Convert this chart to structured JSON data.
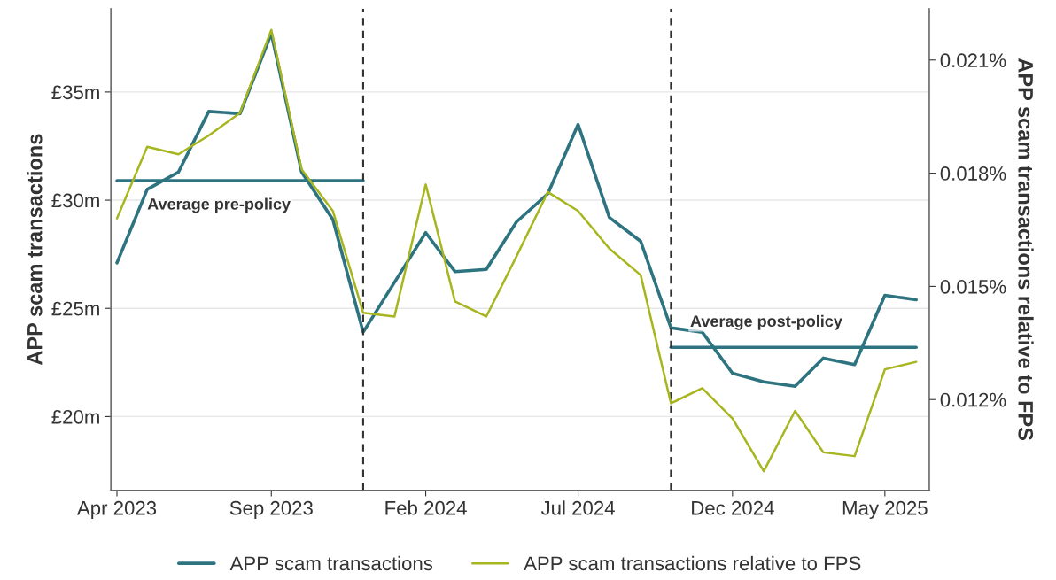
{
  "chart_data": {
    "type": "line",
    "ylabel": "APP scam transactions",
    "y2label": "APP scam transactions relative to FPS",
    "x": [
      "2023-04",
      "2023-05",
      "2023-06",
      "2023-07",
      "2023-08",
      "2023-09",
      "2023-10",
      "2023-11",
      "2023-12",
      "2024-01",
      "2024-02",
      "2024-03",
      "2024-04",
      "2024-05",
      "2024-06",
      "2024-07",
      "2024-08",
      "2024-09",
      "2024-10",
      "2024-11",
      "2024-12",
      "2025-01",
      "2025-02",
      "2025-03",
      "2025-04",
      "2025-05",
      "2025-06"
    ],
    "series": [
      {
        "name": "APP scam transactions",
        "color": "#2e7480",
        "values": [
          27.1,
          30.5,
          31.3,
          34.1,
          34.0,
          37.7,
          31.3,
          29.1,
          23.9,
          26.2,
          28.5,
          26.7,
          26.8,
          29.0,
          30.3,
          33.5,
          29.2,
          28.1,
          24.1,
          23.9,
          22.0,
          21.6,
          21.4,
          22.7,
          22.4,
          25.6,
          25.4
        ]
      },
      {
        "name": "APP scam transactions relative to FPS",
        "color": "#a7b51e",
        "axis": "y2",
        "values": [
          0.0168,
          0.0187,
          0.0185,
          0.019,
          0.0196,
          0.0218,
          0.0181,
          0.017,
          0.0143,
          0.0142,
          0.0177,
          0.0146,
          0.0142,
          0.0158,
          0.0175,
          0.017,
          0.016,
          0.0153,
          0.0119,
          0.0123,
          0.0115,
          0.0101,
          0.0117,
          0.0106,
          0.0105,
          0.0128,
          0.013
        ]
      },
      {
        "type": "line",
        "color": "#2e7480",
        "x": [
          "2023-04",
          "2023-12"
        ],
        "values": [
          30.9,
          30.9
        ]
      },
      {
        "type": "line",
        "color": "#2e7480",
        "x": [
          "2024-10",
          "2025-06"
        ],
        "values": [
          23.2,
          23.2
        ]
      }
    ],
    "annotations": [
      {
        "text": "Average pre-policy",
        "x": "2023-05-01",
        "y": 30.9
      },
      {
        "text": "Average post-policy",
        "x": "2024-10-20",
        "y": 23.2
      }
    ],
    "ref_lines": [
      {
        "axis": "x",
        "value": "2023-12",
        "color": "#333333",
        "line_style": "dashed"
      },
      {
        "axis": "x",
        "value": "2024-10",
        "color": "#333333",
        "line_style": "dashed"
      }
    ],
    "xlim": [
      "2023-03-26",
      "2025-06-14"
    ],
    "xticks": [
      {
        "value": "2023-04",
        "label": "Apr 2023"
      },
      {
        "value": "2023-09",
        "label": "Sep 2023"
      },
      {
        "value": "2024-02",
        "label": "Feb 2024"
      },
      {
        "value": "2024-07",
        "label": "Jul 2024"
      },
      {
        "value": "2024-12",
        "label": "Dec 2024"
      },
      {
        "value": "2025-05",
        "label": "May 2025"
      }
    ],
    "ylim": [
      16.6,
      38.85
    ],
    "yticks": [
      {
        "value": 20,
        "label": "£20m"
      },
      {
        "value": 25,
        "label": "£25m"
      },
      {
        "value": 30,
        "label": "£30m"
      },
      {
        "value": 35,
        "label": "£35m"
      }
    ],
    "y2lim": [
      0.0096,
      0.02236
    ],
    "y2ticks": [
      {
        "value": 0.012,
        "label": "0.012%"
      },
      {
        "value": 0.015,
        "label": "0.015%"
      },
      {
        "value": 0.018,
        "label": "0.018%"
      },
      {
        "value": 0.021,
        "label": "0.021%"
      }
    ],
    "grid": "y",
    "legend": "bottom",
    "line_style": "solid",
    "marker": "none"
  }
}
